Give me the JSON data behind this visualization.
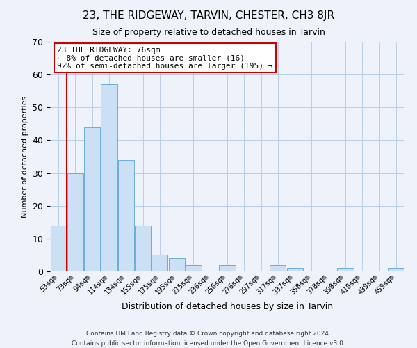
{
  "title": "23, THE RIDGEWAY, TARVIN, CHESTER, CH3 8JR",
  "subtitle": "Size of property relative to detached houses in Tarvin",
  "xlabel": "Distribution of detached houses by size in Tarvin",
  "ylabel": "Number of detached properties",
  "bar_labels": [
    "53sqm",
    "73sqm",
    "94sqm",
    "114sqm",
    "134sqm",
    "155sqm",
    "175sqm",
    "195sqm",
    "215sqm",
    "236sqm",
    "256sqm",
    "276sqm",
    "297sqm",
    "317sqm",
    "337sqm",
    "358sqm",
    "378sqm",
    "398sqm",
    "418sqm",
    "439sqm",
    "459sqm"
  ],
  "bar_values": [
    14,
    30,
    44,
    57,
    34,
    14,
    5,
    4,
    2,
    0,
    2,
    0,
    0,
    2,
    1,
    0,
    0,
    1,
    0,
    0,
    1
  ],
  "bar_color": "#cce0f5",
  "bar_edge_color": "#6aaed6",
  "grid_color": "#b8cfe8",
  "vline_color": "#cc0000",
  "annotation_title": "23 THE RIDGEWAY: 76sqm",
  "annotation_line1": "← 8% of detached houses are smaller (16)",
  "annotation_line2": "92% of semi-detached houses are larger (195) →",
  "annotation_box_color": "#ffffff",
  "annotation_box_edge": "#cc0000",
  "ylim": [
    0,
    70
  ],
  "yticks": [
    0,
    10,
    20,
    30,
    40,
    50,
    60,
    70
  ],
  "footer1": "Contains HM Land Registry data © Crown copyright and database right 2024.",
  "footer2": "Contains public sector information licensed under the Open Government Licence v3.0.",
  "background_color": "#eef2fa"
}
